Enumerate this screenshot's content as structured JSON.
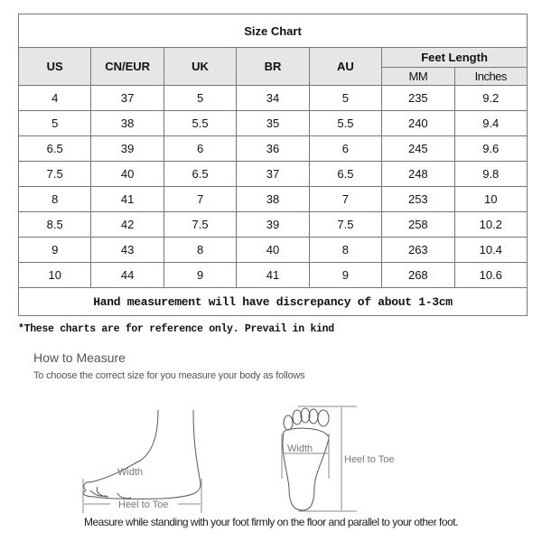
{
  "table": {
    "title": "Size Chart",
    "headers": [
      "US",
      "CN/EUR",
      "UK",
      "BR",
      "AU"
    ],
    "feet_length": {
      "label": "Feet Length",
      "sub": [
        "MM",
        "Inches"
      ]
    },
    "rows": [
      [
        "4",
        "37",
        "5",
        "34",
        "5",
        "235",
        "9.2"
      ],
      [
        "5",
        "38",
        "5.5",
        "35",
        "5.5",
        "240",
        "9.4"
      ],
      [
        "6.5",
        "39",
        "6",
        "36",
        "6",
        "245",
        "9.6"
      ],
      [
        "7.5",
        "40",
        "6.5",
        "37",
        "6.5",
        "248",
        "9.8"
      ],
      [
        "8",
        "41",
        "7",
        "38",
        "7",
        "253",
        "10"
      ],
      [
        "8.5",
        "42",
        "7.5",
        "39",
        "7.5",
        "258",
        "10.2"
      ],
      [
        "9",
        "43",
        "8",
        "40",
        "8",
        "263",
        "10.4"
      ],
      [
        "10",
        "44",
        "9",
        "41",
        "9",
        "268",
        "10.6"
      ]
    ],
    "note": "Hand measurement will have discrepancy of about 1-3cm"
  },
  "reference_note": "*These charts are for reference only. Prevail in kind",
  "how_to": {
    "title": "How to Measure",
    "subtitle": "To choose the correct size for you measure your body as follows",
    "side_width": "Width",
    "side_heel_to_toe": "Heel to Toe",
    "sole_width": "Width",
    "sole_heel_to_toe": "Heel to Toe",
    "instruction": "Measure while standing with your foot firmly on the floor and parallel to your other foot."
  }
}
